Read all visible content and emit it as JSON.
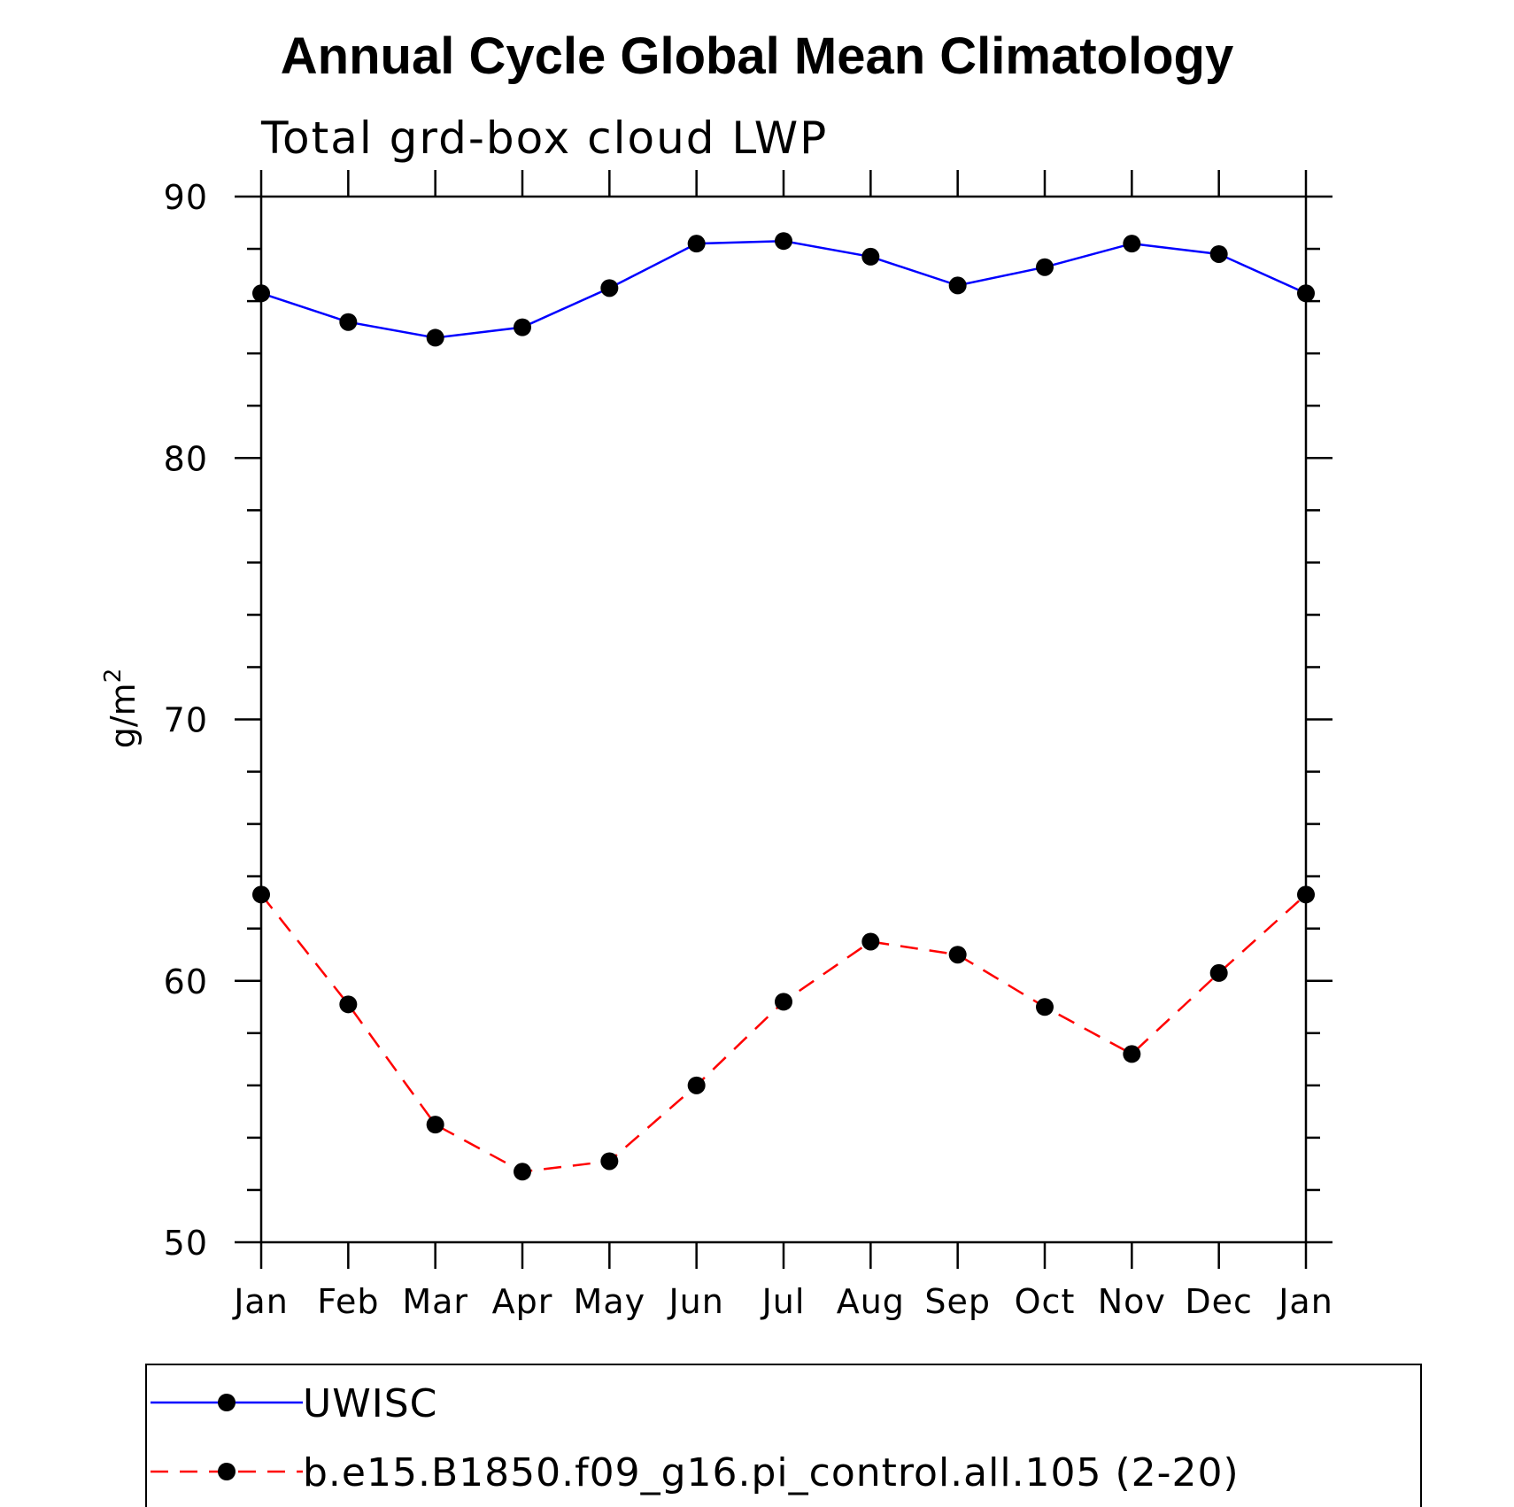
{
  "chart_data": {
    "type": "line",
    "title": "Annual Cycle Global Mean Climatology",
    "subtitle": "Total grd-box cloud LWP",
    "ylabel": "g/m",
    "ylabel_sup": "2",
    "categories": [
      "Jan",
      "Feb",
      "Mar",
      "Apr",
      "May",
      "Jun",
      "Jul",
      "Aug",
      "Sep",
      "Oct",
      "Nov",
      "Dec",
      "Jan"
    ],
    "ylim": [
      50,
      90
    ],
    "yticks": [
      50,
      60,
      70,
      80,
      90
    ],
    "y_minor_step": 2,
    "grid": false,
    "legend_position": "bottom",
    "series": [
      {
        "name": "UWISC",
        "color": "#0000ff",
        "line_style": "solid",
        "marker": "filled-circle",
        "marker_color": "#000000",
        "values": [
          86.3,
          85.2,
          84.6,
          85.0,
          86.5,
          88.2,
          88.3,
          87.7,
          86.6,
          87.3,
          88.2,
          87.8,
          86.3
        ]
      },
      {
        "name": "b.e15.B1850.f09_g16.pi_control.all.105 (2-20)",
        "color": "#ff0000",
        "line_style": "dashed",
        "marker": "filled-circle",
        "marker_color": "#000000",
        "values": [
          63.3,
          59.1,
          54.5,
          52.7,
          53.1,
          56.0,
          59.2,
          61.5,
          61.0,
          59.0,
          57.2,
          60.3,
          63.3
        ]
      }
    ]
  }
}
